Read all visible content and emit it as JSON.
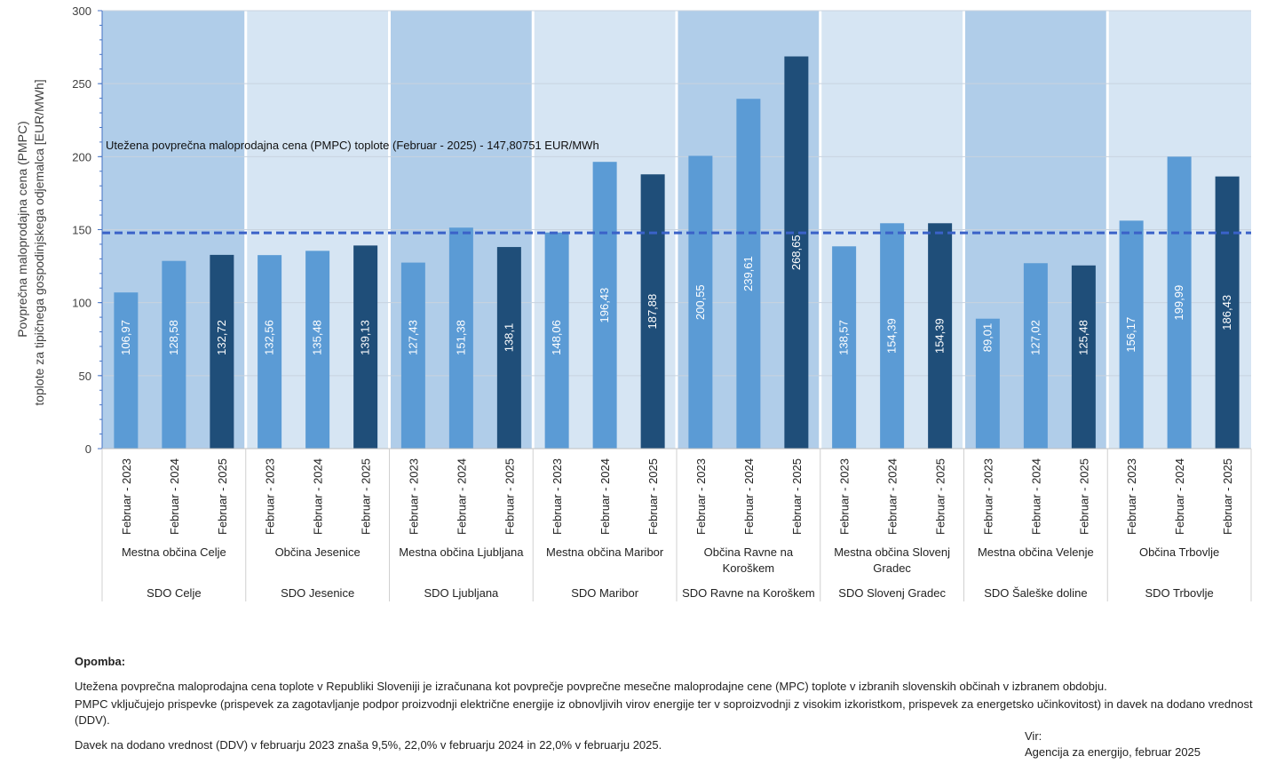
{
  "chart_data": {
    "type": "bar",
    "ylabel": "Povprečna maloprodajna cena (PMPC) toplote za tipičnega gospodinjskega odjemalca  [EUR/MWh]",
    "ylabel_lines": [
      "Povprečna maloprodajna cena (PMPC)",
      "toplote za tipičnega gospodinjskega odjemalca  [EUR/MWh]"
    ],
    "ylim": [
      0,
      300
    ],
    "yticks": [
      0,
      50,
      100,
      150,
      200,
      250,
      300
    ],
    "reference_line": {
      "value": 147.80751,
      "label": "Utežena povprečna maloprodajna cena (PMPC) toplote (Februar - 2025) - 147,80751  EUR/MWh",
      "color": "#3a62c8"
    },
    "period_labels": [
      "Februar - 2023",
      "Februar - 2024",
      "Februar - 2025"
    ],
    "period_colors": [
      "#5b9bd5",
      "#5b9bd5",
      "#1f4e79"
    ],
    "band_colors": [
      "#b0cde9",
      "#d6e5f3"
    ],
    "groups": [
      {
        "municipality": "Mestna občina Celje",
        "sdo": "SDO Celje",
        "values": [
          106.97,
          128.58,
          132.72
        ],
        "labels": [
          "106,97",
          "128,58",
          "132,72"
        ]
      },
      {
        "municipality": "Občina Jesenice",
        "sdo": "SDO Jesenice",
        "values": [
          132.56,
          135.48,
          139.13
        ],
        "labels": [
          "132,56",
          "135,48",
          "139,13"
        ]
      },
      {
        "municipality": "Mestna občina Ljubljana",
        "sdo": "SDO Ljubljana",
        "values": [
          127.43,
          151.38,
          138.1
        ],
        "labels": [
          "127,43",
          "151,38",
          "138,1"
        ]
      },
      {
        "municipality": "Mestna občina Maribor",
        "sdo": "SDO Maribor",
        "values": [
          148.06,
          196.43,
          187.88
        ],
        "labels": [
          "148,06",
          "196,43",
          "187,88"
        ]
      },
      {
        "municipality": "Občina Ravne na Koroškem",
        "sdo": "SDO Ravne na Koroškem",
        "values": [
          200.55,
          239.61,
          268.65
        ],
        "labels": [
          "200,55",
          "239,61",
          "268,65"
        ]
      },
      {
        "municipality": "Mestna občina Slovenj Gradec",
        "sdo": "SDO Slovenj Gradec",
        "values": [
          138.57,
          154.39,
          154.39
        ],
        "labels": [
          "138,57",
          "154,39",
          "154,39"
        ]
      },
      {
        "municipality": "Mestna občina Velenje",
        "sdo": "SDO Šaleške doline",
        "values": [
          89.01,
          127.02,
          125.48
        ],
        "labels": [
          "89,01",
          "127,02",
          "125,48"
        ]
      },
      {
        "municipality": "Občina Trbovlje",
        "sdo": "SDO Trbovlje",
        "values": [
          156.17,
          199.99,
          186.43
        ],
        "labels": [
          "156,17",
          "199,99",
          "186,43"
        ]
      }
    ]
  },
  "notes": {
    "title": "Opomba:",
    "p1": "Utežena povprečna maloprodajna cena toplote v Republiki Sloveniji je izračunana kot povprečje povprečne mesečne maloprodajne cene (MPC) toplote v izbranih slovenskih občinah v izbranem obdobju.",
    "p2": "PMPC vključujejo prispevke (prispevek za zagotavljanje podpor proizvodnji električne energije iz obnovljivih virov energije ter v soproizvodnji z visokim izkoristkom, prispevek za energetsko učinkovitost) in davek na dodano vrednost (DDV).",
    "p3": "Davek na dodano vrednost (DDV) v februarju 2023 znaša 9,5%, 22,0% v februarju 2024 in 22,0% v februarju 2025."
  },
  "source": {
    "label": "Vir:",
    "text": "Agencija za energijo, februar 2025"
  }
}
